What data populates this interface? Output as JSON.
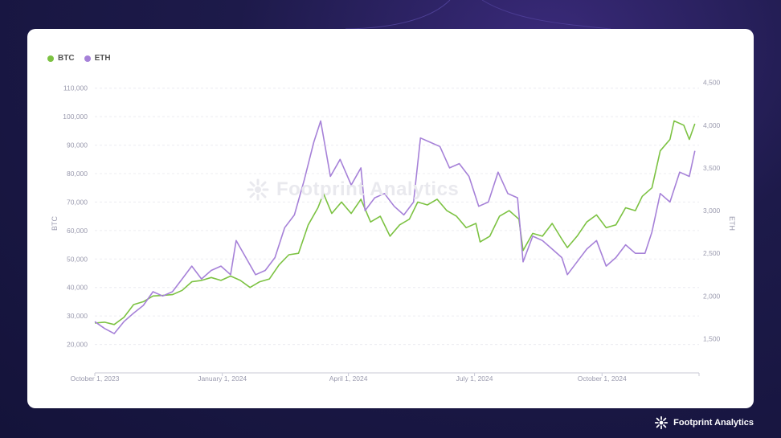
{
  "branding": {
    "name": "Footprint Analytics"
  },
  "chart_data": {
    "type": "line",
    "watermark": "Footprint Analytics",
    "ylabel": "BTC",
    "ylabel_right": "ETH",
    "ylim": [
      10000,
      115000
    ],
    "ylim_right": [
      1100,
      4600
    ],
    "yticks": [
      "20,000",
      "30,000",
      "40,000",
      "50,000",
      "60,000",
      "70,000",
      "80,000",
      "90,000",
      "100,000",
      "110,000"
    ],
    "yticks_right": [
      "1,500",
      "2,000",
      "2,500",
      "3,000",
      "3,500",
      "4,000",
      "4,500"
    ],
    "xtick_labels": [
      "October 1, 2023",
      "January 1, 2024",
      "April 1, 2024",
      "July 1, 2024",
      "October 1, 2024"
    ],
    "xlim": [
      "2023-10-01",
      "2024-12-10"
    ],
    "legend_position": "top-left",
    "grid": true,
    "colors": {
      "BTC": "#7cc242",
      "ETH": "#a681d8"
    },
    "series": [
      {
        "name": "BTC",
        "axis": "left",
        "points": [
          [
            "2023-10-01",
            27500
          ],
          [
            "2023-10-08",
            27800
          ],
          [
            "2023-10-15",
            27000
          ],
          [
            "2023-10-22",
            29500
          ],
          [
            "2023-10-29",
            34000
          ],
          [
            "2023-11-05",
            35000
          ],
          [
            "2023-11-12",
            37000
          ],
          [
            "2023-11-19",
            37200
          ],
          [
            "2023-11-26",
            37500
          ],
          [
            "2023-12-03",
            39000
          ],
          [
            "2023-12-10",
            42000
          ],
          [
            "2023-12-17",
            42500
          ],
          [
            "2023-12-24",
            43500
          ],
          [
            "2023-12-31",
            42500
          ],
          [
            "2024-01-07",
            44000
          ],
          [
            "2024-01-14",
            42500
          ],
          [
            "2024-01-21",
            40000
          ],
          [
            "2024-01-28",
            42000
          ],
          [
            "2024-02-04",
            43000
          ],
          [
            "2024-02-11",
            48000
          ],
          [
            "2024-02-18",
            51500
          ],
          [
            "2024-02-25",
            52000
          ],
          [
            "2024-03-03",
            62000
          ],
          [
            "2024-03-10",
            68000
          ],
          [
            "2024-03-14",
            73000
          ],
          [
            "2024-03-20",
            66000
          ],
          [
            "2024-03-27",
            70000
          ],
          [
            "2024-04-03",
            66000
          ],
          [
            "2024-04-10",
            71000
          ],
          [
            "2024-04-17",
            63000
          ],
          [
            "2024-04-24",
            65000
          ],
          [
            "2024-05-01",
            58000
          ],
          [
            "2024-05-08",
            62000
          ],
          [
            "2024-05-15",
            64000
          ],
          [
            "2024-05-21",
            70000
          ],
          [
            "2024-05-28",
            69000
          ],
          [
            "2024-06-04",
            71000
          ],
          [
            "2024-06-11",
            67000
          ],
          [
            "2024-06-18",
            65000
          ],
          [
            "2024-06-25",
            61000
          ],
          [
            "2024-07-02",
            62500
          ],
          [
            "2024-07-05",
            56000
          ],
          [
            "2024-07-12",
            58000
          ],
          [
            "2024-07-19",
            65000
          ],
          [
            "2024-07-26",
            67000
          ],
          [
            "2024-08-02",
            64000
          ],
          [
            "2024-08-05",
            53000
          ],
          [
            "2024-08-12",
            59000
          ],
          [
            "2024-08-19",
            58000
          ],
          [
            "2024-08-26",
            62500
          ],
          [
            "2024-09-02",
            57000
          ],
          [
            "2024-09-06",
            54000
          ],
          [
            "2024-09-13",
            58000
          ],
          [
            "2024-09-20",
            63000
          ],
          [
            "2024-09-27",
            65500
          ],
          [
            "2024-10-04",
            61000
          ],
          [
            "2024-10-11",
            62000
          ],
          [
            "2024-10-18",
            68000
          ],
          [
            "2024-10-25",
            67000
          ],
          [
            "2024-10-30",
            72000
          ],
          [
            "2024-11-06",
            75000
          ],
          [
            "2024-11-12",
            88000
          ],
          [
            "2024-11-19",
            92000
          ],
          [
            "2024-11-22",
            98500
          ],
          [
            "2024-11-29",
            97000
          ],
          [
            "2024-12-03",
            92000
          ],
          [
            "2024-12-07",
            97500
          ]
        ]
      },
      {
        "name": "ETH",
        "axis": "right",
        "points": [
          [
            "2023-10-01",
            1700
          ],
          [
            "2023-10-08",
            1620
          ],
          [
            "2023-10-15",
            1560
          ],
          [
            "2023-10-22",
            1700
          ],
          [
            "2023-10-29",
            1800
          ],
          [
            "2023-11-05",
            1890
          ],
          [
            "2023-11-12",
            2050
          ],
          [
            "2023-11-19",
            2000
          ],
          [
            "2023-11-26",
            2050
          ],
          [
            "2023-12-03",
            2200
          ],
          [
            "2023-12-10",
            2350
          ],
          [
            "2023-12-17",
            2200
          ],
          [
            "2023-12-24",
            2300
          ],
          [
            "2023-12-31",
            2350
          ],
          [
            "2024-01-07",
            2250
          ],
          [
            "2024-01-11",
            2650
          ],
          [
            "2024-01-18",
            2450
          ],
          [
            "2024-01-25",
            2250
          ],
          [
            "2024-02-01",
            2300
          ],
          [
            "2024-02-08",
            2450
          ],
          [
            "2024-02-15",
            2800
          ],
          [
            "2024-02-22",
            2950
          ],
          [
            "2024-02-29",
            3350
          ],
          [
            "2024-03-07",
            3800
          ],
          [
            "2024-03-12",
            4050
          ],
          [
            "2024-03-19",
            3400
          ],
          [
            "2024-03-26",
            3600
          ],
          [
            "2024-04-03",
            3300
          ],
          [
            "2024-04-10",
            3500
          ],
          [
            "2024-04-13",
            3000
          ],
          [
            "2024-04-20",
            3150
          ],
          [
            "2024-04-27",
            3200
          ],
          [
            "2024-05-04",
            3050
          ],
          [
            "2024-05-11",
            2950
          ],
          [
            "2024-05-18",
            3100
          ],
          [
            "2024-05-23",
            3850
          ],
          [
            "2024-05-30",
            3800
          ],
          [
            "2024-06-06",
            3750
          ],
          [
            "2024-06-13",
            3500
          ],
          [
            "2024-06-20",
            3550
          ],
          [
            "2024-06-27",
            3400
          ],
          [
            "2024-07-04",
            3050
          ],
          [
            "2024-07-11",
            3100
          ],
          [
            "2024-07-18",
            3450
          ],
          [
            "2024-07-25",
            3200
          ],
          [
            "2024-08-01",
            3150
          ],
          [
            "2024-08-05",
            2400
          ],
          [
            "2024-08-12",
            2700
          ],
          [
            "2024-08-19",
            2650
          ],
          [
            "2024-08-26",
            2550
          ],
          [
            "2024-09-02",
            2450
          ],
          [
            "2024-09-06",
            2250
          ],
          [
            "2024-09-13",
            2400
          ],
          [
            "2024-09-20",
            2550
          ],
          [
            "2024-09-27",
            2650
          ],
          [
            "2024-10-04",
            2350
          ],
          [
            "2024-10-11",
            2450
          ],
          [
            "2024-10-18",
            2600
          ],
          [
            "2024-10-25",
            2500
          ],
          [
            "2024-11-01",
            2500
          ],
          [
            "2024-11-06",
            2750
          ],
          [
            "2024-11-12",
            3200
          ],
          [
            "2024-11-19",
            3100
          ],
          [
            "2024-11-26",
            3450
          ],
          [
            "2024-12-03",
            3400
          ],
          [
            "2024-12-07",
            3700
          ]
        ]
      }
    ]
  }
}
